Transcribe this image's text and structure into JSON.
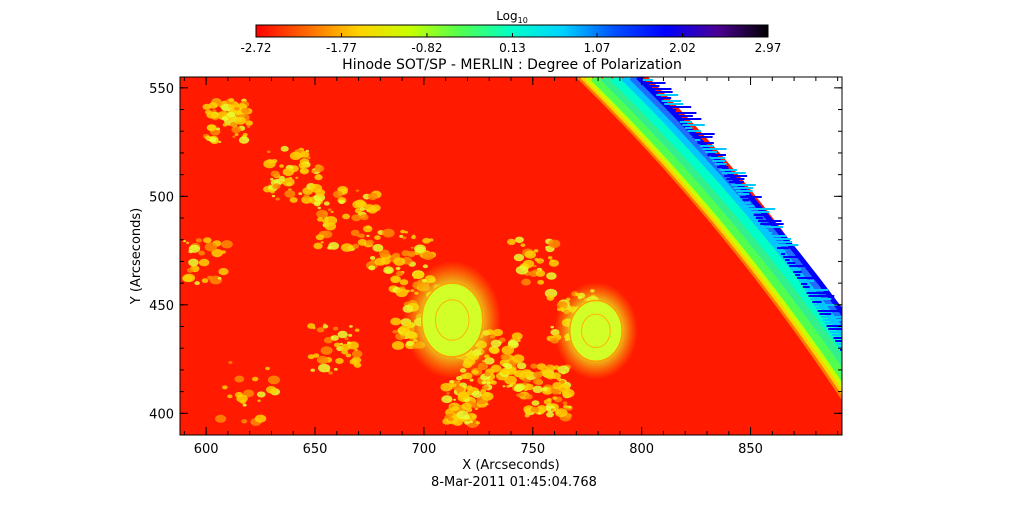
{
  "chart_data": {
    "type": "heatmap",
    "title": "Hinode SOT/SP - MERLIN : Degree of Polarization",
    "xlabel": "X (Arcseconds)",
    "ylabel": "Y (Arcseconds)",
    "date": "8-Mar-2011 01:45:04.768",
    "xlim": [
      588,
      892
    ],
    "ylim": [
      390,
      555
    ],
    "xticks": [
      "600",
      "650",
      "700",
      "750",
      "800",
      "850"
    ],
    "yticks": [
      "400",
      "450",
      "500",
      "550"
    ],
    "colorbar": {
      "label_main": "Log",
      "label_sub": "10",
      "range": [
        -2.72,
        2.97
      ],
      "ticks": [
        "-2.72",
        "-1.77",
        "-0.82",
        "0.13",
        "1.07",
        "2.02",
        "2.97"
      ],
      "colors": [
        "#ff0000",
        "#ff6a00",
        "#ffd200",
        "#c8ff00",
        "#50ff50",
        "#00ffc8",
        "#00d2ff",
        "#0050ff",
        "#0000ff",
        "#4b0096",
        "#000000"
      ]
    },
    "features": [
      {
        "x": 713,
        "y": 443,
        "rx": 14,
        "ry": 17
      },
      {
        "x": 779,
        "y": 438,
        "rx": 12,
        "ry": 14
      }
    ]
  }
}
